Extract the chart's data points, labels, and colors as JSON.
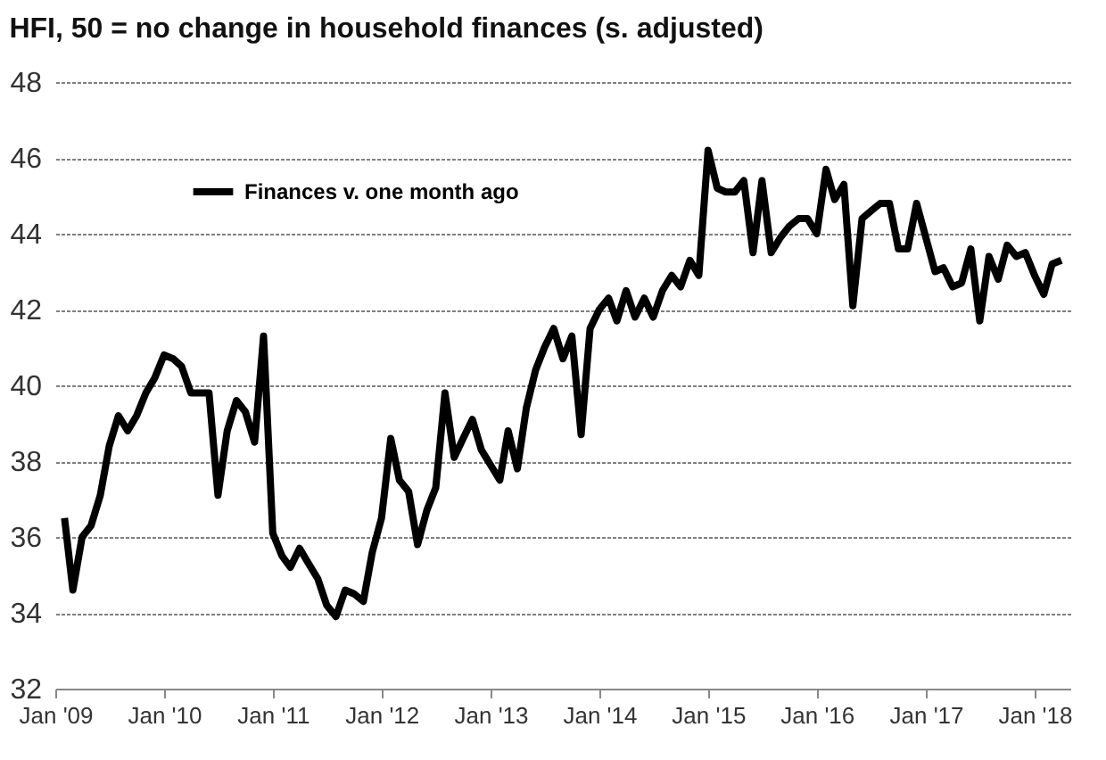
{
  "chart_data": {
    "type": "line",
    "title": "HFI, 50 = no change in household finances (s. adjusted)",
    "x": [
      "2009-02",
      "2009-03",
      "2009-04",
      "2009-05",
      "2009-06",
      "2009-07",
      "2009-08",
      "2009-09",
      "2009-10",
      "2009-11",
      "2009-12",
      "2010-01",
      "2010-02",
      "2010-03",
      "2010-04",
      "2010-05",
      "2010-06",
      "2010-07",
      "2010-08",
      "2010-09",
      "2010-10",
      "2010-11",
      "2010-12",
      "2011-01",
      "2011-02",
      "2011-03",
      "2011-04",
      "2011-05",
      "2011-06",
      "2011-07",
      "2011-08",
      "2011-09",
      "2011-10",
      "2011-11",
      "2011-12",
      "2012-01",
      "2012-02",
      "2012-03",
      "2012-04",
      "2012-05",
      "2012-06",
      "2012-07",
      "2012-08",
      "2012-09",
      "2012-10",
      "2012-11",
      "2012-12",
      "2013-01",
      "2013-02",
      "2013-03",
      "2013-04",
      "2013-05",
      "2013-06",
      "2013-07",
      "2013-08",
      "2013-09",
      "2013-10",
      "2013-11",
      "2013-12",
      "2014-01",
      "2014-02",
      "2014-03",
      "2014-04",
      "2014-05",
      "2014-06",
      "2014-07",
      "2014-08",
      "2014-09",
      "2014-10",
      "2014-11",
      "2014-12",
      "2015-01",
      "2015-02",
      "2015-03",
      "2015-04",
      "2015-05",
      "2015-06",
      "2015-07",
      "2015-08",
      "2015-09",
      "2015-10",
      "2015-11",
      "2015-12",
      "2016-01",
      "2016-02",
      "2016-03",
      "2016-04",
      "2016-05",
      "2016-06",
      "2016-07",
      "2016-08",
      "2016-09",
      "2016-10",
      "2016-11",
      "2016-12",
      "2017-01",
      "2017-02",
      "2017-03",
      "2017-04",
      "2017-05",
      "2017-06",
      "2017-07",
      "2017-08",
      "2017-09",
      "2017-10",
      "2017-11",
      "2017-12",
      "2018-01",
      "2018-02",
      "2018-03",
      "2018-04"
    ],
    "series": [
      {
        "name": "Finances v. one month ago",
        "color": "#000000",
        "values": [
          36.5,
          34.6,
          36.0,
          36.3,
          37.1,
          38.4,
          39.2,
          38.8,
          39.2,
          39.8,
          40.2,
          40.8,
          40.7,
          40.5,
          39.8,
          39.8,
          39.8,
          37.1,
          38.8,
          39.6,
          39.3,
          38.5,
          41.3,
          36.1,
          35.5,
          35.2,
          35.7,
          35.3,
          34.9,
          34.2,
          33.9,
          34.6,
          34.5,
          34.3,
          35.6,
          36.5,
          38.6,
          37.5,
          37.2,
          35.8,
          36.7,
          37.3,
          39.8,
          38.1,
          38.6,
          39.1,
          38.3,
          37.9,
          37.5,
          38.8,
          37.8,
          39.4,
          40.4,
          41.0,
          41.5,
          40.7,
          41.3,
          38.7,
          41.5,
          42.0,
          42.3,
          41.7,
          42.5,
          41.8,
          42.3,
          41.8,
          42.5,
          42.9,
          42.6,
          43.3,
          42.9,
          46.2,
          45.2,
          45.1,
          45.1,
          45.4,
          43.5,
          45.4,
          43.5,
          43.9,
          44.2,
          44.4,
          44.4,
          44.0,
          45.7,
          44.9,
          45.3,
          42.1,
          44.4,
          44.6,
          44.8,
          44.8,
          43.6,
          43.6,
          44.8,
          43.9,
          43.0,
          43.1,
          42.6,
          42.7,
          43.6,
          41.7,
          43.4,
          42.8,
          43.7,
          43.4,
          43.5,
          42.9,
          42.4,
          43.2,
          43.3
        ]
      }
    ],
    "xlim": [
      "2009-01",
      "2018-05"
    ],
    "xticks": [
      {
        "value": "2009-01",
        "label": "Jan '09"
      },
      {
        "value": "2010-01",
        "label": "Jan '10"
      },
      {
        "value": "2011-01",
        "label": "Jan '11"
      },
      {
        "value": "2012-01",
        "label": "Jan '12"
      },
      {
        "value": "2013-01",
        "label": "Jan '13"
      },
      {
        "value": "2014-01",
        "label": "Jan '14"
      },
      {
        "value": "2015-01",
        "label": "Jan '15"
      },
      {
        "value": "2016-01",
        "label": "Jan '16"
      },
      {
        "value": "2017-01",
        "label": "Jan '17"
      },
      {
        "value": "2018-01",
        "label": "Jan '18"
      }
    ],
    "ylim": [
      32,
      48
    ],
    "yticks": [
      32,
      34,
      36,
      38,
      40,
      42,
      44,
      46,
      48
    ],
    "grid": "y",
    "legend": "top left",
    "line_style": "solid",
    "marker": "none"
  }
}
